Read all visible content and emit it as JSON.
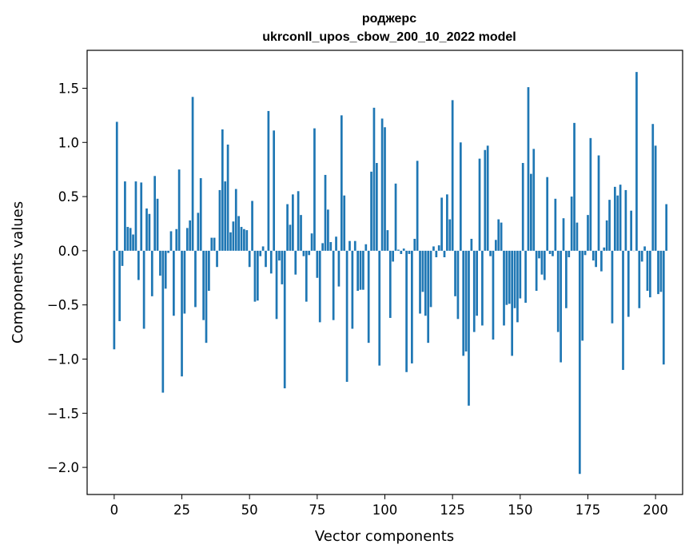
{
  "chart_data": {
    "type": "bar",
    "title": "роджерс",
    "subtitle": "ukrconll_upos_cbow_200_10_2022 model",
    "xlabel": "Vector components",
    "ylabel": "Components values",
    "xlim": [
      -10,
      210
    ],
    "ylim": [
      -2.25,
      1.85
    ],
    "xticks": [
      0,
      25,
      50,
      75,
      100,
      125,
      150,
      175,
      200
    ],
    "xtick_labels": [
      "0",
      "25",
      "50",
      "75",
      "100",
      "125",
      "150",
      "175",
      "200"
    ],
    "yticks": [
      -2.0,
      -1.5,
      -1.0,
      -0.5,
      0.0,
      0.5,
      1.0,
      1.5
    ],
    "ytick_labels": [
      "−2.0",
      "−1.5",
      "−1.0",
      "−0.5",
      "0.0",
      "0.5",
      "1.0",
      "1.5"
    ],
    "grid": false,
    "bar_color": "#1f77b4",
    "values": [
      -0.91,
      1.19,
      -0.65,
      -0.14,
      0.64,
      0.22,
      0.21,
      0.15,
      0.64,
      -0.27,
      0.63,
      -0.72,
      0.39,
      0.34,
      -0.42,
      0.69,
      0.48,
      -0.23,
      -1.31,
      -0.35,
      -0.02,
      0.18,
      -0.6,
      0.2,
      0.75,
      -1.16,
      -0.58,
      0.21,
      0.28,
      1.42,
      -0.52,
      0.35,
      0.67,
      -0.64,
      -0.85,
      -0.37,
      0.12,
      0.12,
      -0.15,
      0.56,
      1.12,
      0.64,
      0.98,
      0.17,
      0.27,
      0.57,
      0.32,
      0.22,
      0.2,
      0.19,
      -0.15,
      0.46,
      -0.47,
      -0.46,
      -0.05,
      0.04,
      -0.15,
      1.29,
      -0.21,
      1.11,
      -0.63,
      -0.09,
      -0.31,
      -1.27,
      0.43,
      0.24,
      0.52,
      -0.22,
      0.55,
      0.33,
      -0.05,
      -0.47,
      -0.04,
      0.16,
      1.13,
      -0.25,
      -0.66,
      0.07,
      0.7,
      0.38,
      0.08,
      -0.64,
      0.13,
      -0.33,
      1.25,
      0.51,
      -1.21,
      0.09,
      -0.72,
      0.09,
      -0.37,
      -0.36,
      -0.36,
      0.06,
      -0.85,
      0.73,
      1.32,
      0.81,
      -1.06,
      1.22,
      1.14,
      0.19,
      -0.62,
      -0.1,
      0.62,
      0.01,
      -0.03,
      0.02,
      -1.12,
      -0.03,
      -1.04,
      0.11,
      0.83,
      -0.58,
      -0.38,
      -0.6,
      -0.85,
      -0.52,
      0.04,
      -0.06,
      0.05,
      0.49,
      -0.06,
      0.52,
      0.29,
      1.39,
      -0.42,
      -0.63,
      1.0,
      -0.97,
      -0.93,
      -1.43,
      0.11,
      -0.75,
      -0.6,
      0.85,
      -0.69,
      0.93,
      0.97,
      -0.05,
      -0.82,
      0.1,
      0.29,
      0.26,
      -0.69,
      -0.5,
      -0.49,
      -0.97,
      -0.53,
      -0.66,
      -0.44,
      0.81,
      -0.48,
      1.51,
      0.71,
      0.94,
      -0.37,
      -0.07,
      -0.22,
      -0.27,
      0.68,
      -0.03,
      -0.05,
      0.48,
      -0.75,
      -1.03,
      0.3,
      -0.53,
      -0.06,
      0.5,
      1.18,
      0.26,
      -2.06,
      -0.83,
      -0.04,
      0.33,
      1.04,
      -0.09,
      -0.15,
      0.88,
      -0.19,
      0.03,
      0.28,
      0.47,
      -0.67,
      0.59,
      0.51,
      0.61,
      -1.1,
      0.56,
      -0.61,
      0.37,
      0.0,
      1.65,
      -0.53,
      -0.1,
      0.04,
      -0.37,
      -0.43,
      1.17,
      0.97,
      -0.4,
      -0.38,
      -1.05,
      0.43
    ]
  }
}
